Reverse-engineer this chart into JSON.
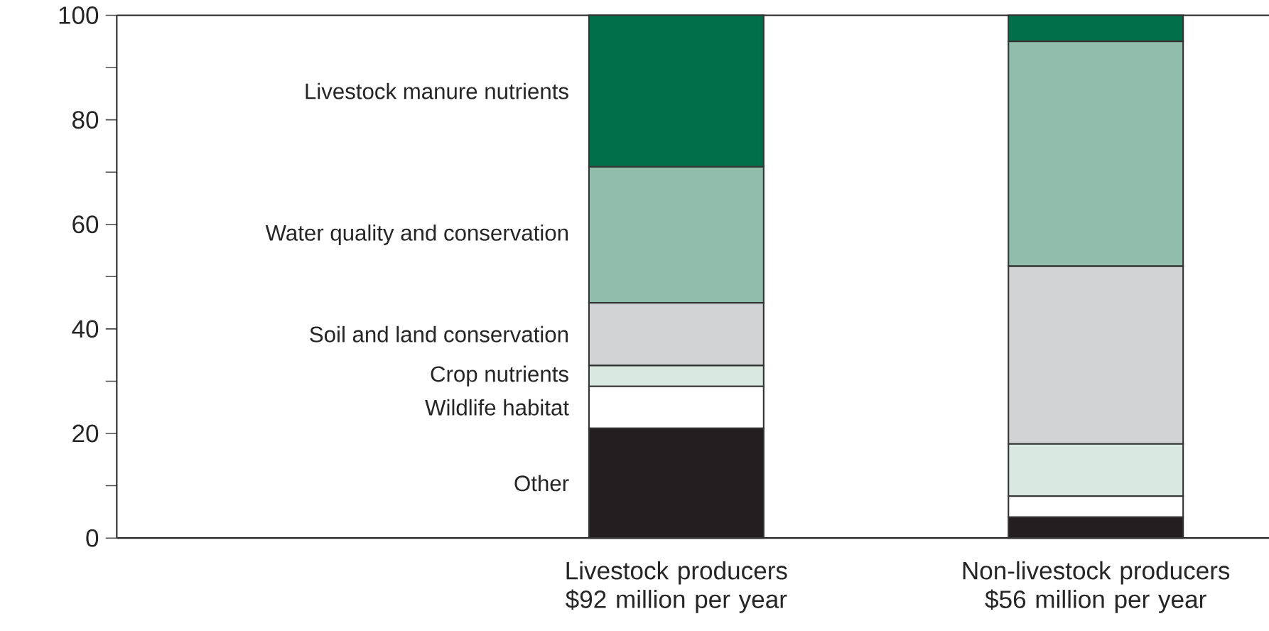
{
  "chart_data": {
    "type": "bar",
    "stacked": true,
    "categories": [
      "Livestock producers $92 million per year",
      "Non-livestock producers $56 million per year"
    ],
    "series": [
      {
        "name": "Other",
        "color": "#231f20",
        "values": [
          21,
          4
        ]
      },
      {
        "name": "Wildlife habitat",
        "color": "#ffffff",
        "values": [
          8,
          4
        ]
      },
      {
        "name": "Crop nutrients",
        "color": "#d9e8e0",
        "values": [
          4,
          10
        ]
      },
      {
        "name": "Soil and land conservation",
        "color": "#d1d3d4",
        "values": [
          12,
          34
        ]
      },
      {
        "name": "Water quality and conservation",
        "color": "#91bdad",
        "values": [
          26,
          43
        ]
      },
      {
        "name": "Livestock manure nutrients",
        "color": "#00704a",
        "values": [
          29,
          5
        ]
      }
    ],
    "ylim": [
      0,
      100
    ],
    "yticks": [
      0,
      {
        "value": 10,
        "label": null
      },
      20,
      {
        "value": 30,
        "label": null
      },
      40,
      {
        "value": 50,
        "label": null
      },
      60,
      {
        "value": 70,
        "label": null
      },
      80,
      {
        "value": 90,
        "label": null
      },
      100
    ]
  }
}
